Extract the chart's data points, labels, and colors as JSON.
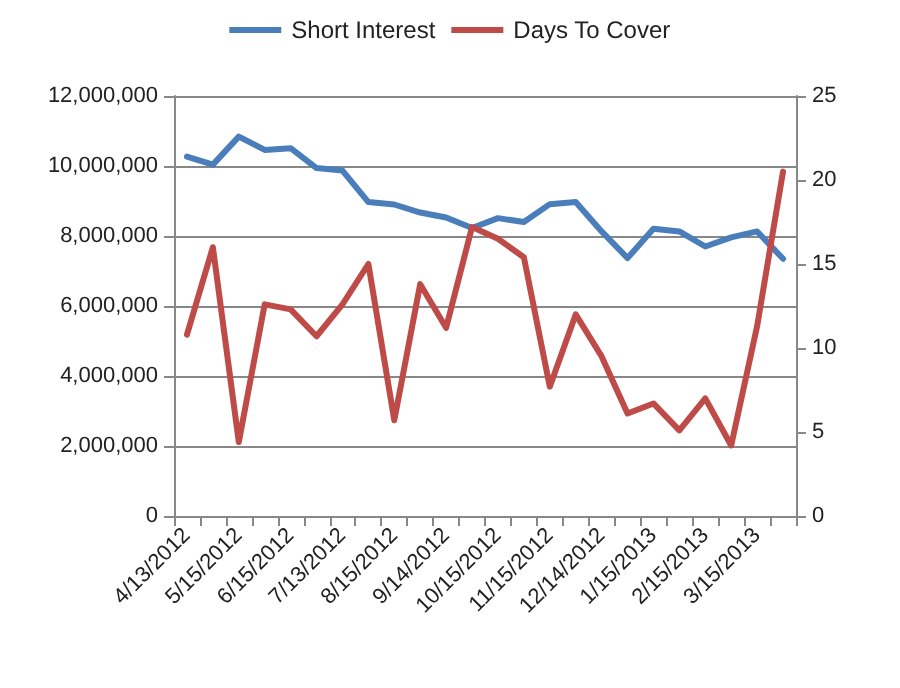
{
  "chart_data": {
    "type": "line",
    "categories": [
      "4/13/2012",
      null,
      "5/15/2012",
      null,
      "6/15/2012",
      null,
      "7/13/2012",
      null,
      "8/15/2012",
      null,
      "9/14/2012",
      null,
      "10/15/2012",
      null,
      "11/15/2012",
      null,
      "12/14/2012",
      null,
      "1/15/2013",
      null,
      "2/15/2013",
      null,
      "3/15/2013",
      null
    ],
    "series": [
      {
        "name": "Short Interest",
        "color": "#4a7ebb",
        "values": [
          10270000,
          10040000,
          10840000,
          10460000,
          10510000,
          9940000,
          9870000,
          8970000,
          8900000,
          8670000,
          8530000,
          8230000,
          8510000,
          8400000,
          8910000,
          8970000,
          8130000,
          7370000,
          8210000,
          8130000,
          7700000,
          7960000,
          8130000,
          7350000
        ]
      },
      {
        "name": "Days To Cover",
        "color": "#be4b48",
        "axis": "y2",
        "values": [
          10.8,
          16.0,
          4.4,
          12.6,
          12.3,
          10.7,
          12.6,
          15.0,
          5.7,
          13.8,
          11.2,
          17.2,
          16.5,
          15.4,
          7.7,
          12.0,
          9.5,
          6.1,
          6.7,
          5.1,
          7.0,
          4.2,
          11.3,
          20.5
        ]
      }
    ],
    "ylim": [
      0,
      12000000
    ],
    "yticks": [
      {
        "value": 0,
        "label": "0"
      },
      {
        "value": 2000000,
        "label": "2,000,000"
      },
      {
        "value": 4000000,
        "label": "4,000,000"
      },
      {
        "value": 6000000,
        "label": "6,000,000"
      },
      {
        "value": 8000000,
        "label": "8,000,000"
      },
      {
        "value": 10000000,
        "label": "10,000,000"
      },
      {
        "value": 12000000,
        "label": "12,000,000"
      }
    ],
    "y2lim": [
      0,
      25
    ],
    "y2ticks": [
      0,
      5,
      10,
      15,
      20,
      25
    ],
    "grid": "y",
    "legend": "top",
    "marker": "none",
    "line_style": "solid"
  }
}
